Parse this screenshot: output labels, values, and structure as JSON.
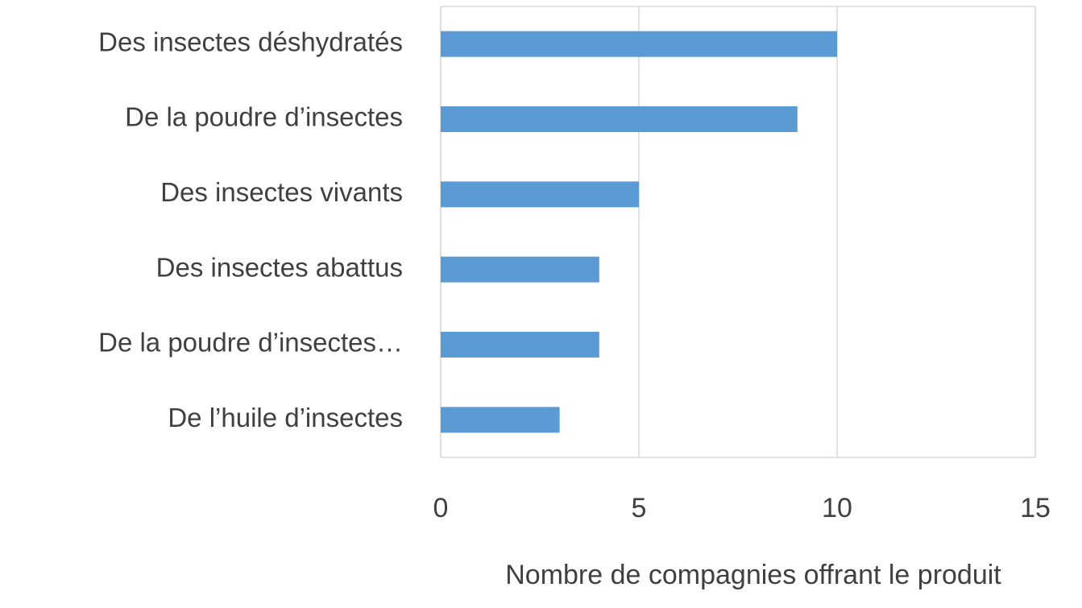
{
  "chart_data": {
    "type": "barh",
    "categories": [
      "Des insectes déshydratés",
      "De la poudre d’insectes",
      "Des insectes vivants",
      "Des insectes abattus",
      "De la poudre d’insectes…",
      "De l’huile d’insectes"
    ],
    "values": [
      10,
      9,
      5,
      4,
      4,
      3
    ],
    "color": "#5b9bd5",
    "xlabel": "Nombre de compagnies offrant le produit",
    "xlim": [
      0,
      15
    ],
    "xticks": [
      0,
      5,
      10,
      15
    ],
    "grid": true
  }
}
